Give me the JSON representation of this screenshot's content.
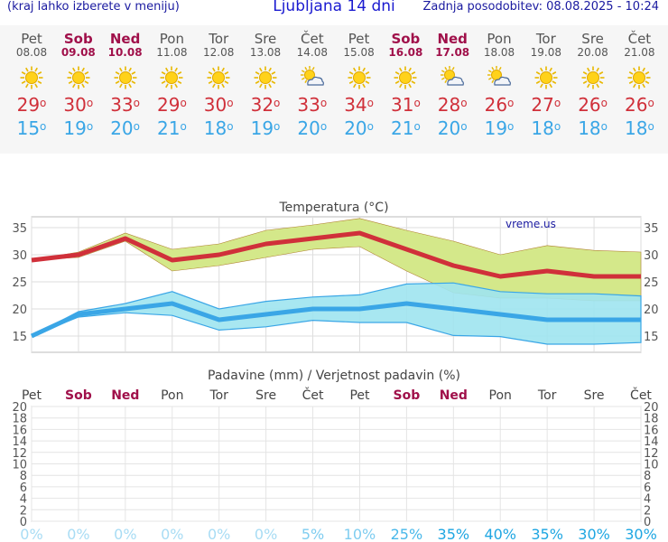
{
  "header": {
    "menu_hint": "(kraj lahko izberete v meniju)",
    "title": "Ljubljana 14 dni",
    "last_update": "Zadnja posodobitev: 08.08.2025 - 10:24"
  },
  "colors": {
    "max": "#d0303a",
    "min": "#3aa6e6",
    "weekend": "#a0104a",
    "band_max": "#d4e88a",
    "band_min": "#9ee4f0"
  },
  "days": [
    {
      "name": "Pet",
      "date": "08.08",
      "weekend": false,
      "icon": "sun-icon",
      "max": "29",
      "min": "15",
      "rain": "0%"
    },
    {
      "name": "Sob",
      "date": "09.08",
      "weekend": true,
      "icon": "sun-icon",
      "max": "30",
      "min": "19",
      "rain": "0%"
    },
    {
      "name": "Ned",
      "date": "10.08",
      "weekend": true,
      "icon": "sun-icon",
      "max": "33",
      "min": "20",
      "rain": "0%"
    },
    {
      "name": "Pon",
      "date": "11.08",
      "weekend": false,
      "icon": "sun-icon",
      "max": "29",
      "min": "21",
      "rain": "0%"
    },
    {
      "name": "Tor",
      "date": "12.08",
      "weekend": false,
      "icon": "sun-icon",
      "max": "30",
      "min": "18",
      "rain": "0%"
    },
    {
      "name": "Sre",
      "date": "13.08",
      "weekend": false,
      "icon": "sun-icon",
      "max": "32",
      "min": "19",
      "rain": "0%"
    },
    {
      "name": "Čet",
      "date": "14.08",
      "weekend": false,
      "icon": "partly-cloudy-icon",
      "max": "33",
      "min": "20",
      "rain": "5%"
    },
    {
      "name": "Pet",
      "date": "15.08",
      "weekend": false,
      "icon": "sun-icon",
      "max": "34",
      "min": "20",
      "rain": "10%"
    },
    {
      "name": "Sob",
      "date": "16.08",
      "weekend": true,
      "icon": "sun-icon",
      "max": "31",
      "min": "21",
      "rain": "25%"
    },
    {
      "name": "Ned",
      "date": "17.08",
      "weekend": true,
      "icon": "partly-cloudy-icon",
      "max": "28",
      "min": "20",
      "rain": "35%"
    },
    {
      "name": "Pon",
      "date": "18.08",
      "weekend": false,
      "icon": "partly-cloudy-icon",
      "max": "26",
      "min": "19",
      "rain": "40%"
    },
    {
      "name": "Tor",
      "date": "19.08",
      "weekend": false,
      "icon": "sun-icon",
      "max": "27",
      "min": "18",
      "rain": "35%"
    },
    {
      "name": "Sre",
      "date": "20.08",
      "weekend": false,
      "icon": "sun-icon",
      "max": "26",
      "min": "18",
      "rain": "30%"
    },
    {
      "name": "Čet",
      "date": "21.08",
      "weekend": false,
      "icon": "sun-icon",
      "max": "26",
      "min": "18",
      "rain": "30%"
    }
  ],
  "chart_data": [
    {
      "type": "line",
      "title": "Temperatura (°C)",
      "watermark": "vreme.us",
      "categories": [
        "08.08",
        "09.08",
        "10.08",
        "11.08",
        "12.08",
        "13.08",
        "14.08",
        "15.08",
        "16.08",
        "17.08",
        "18.08",
        "19.08",
        "20.08",
        "21.08"
      ],
      "ylim": [
        12,
        37
      ],
      "yticks": [
        "15",
        "20",
        "25",
        "30",
        "35"
      ],
      "grid": true,
      "series": [
        {
          "role": "max",
          "values": [
            29,
            30,
            33,
            29,
            30,
            32,
            33,
            34,
            31,
            28,
            26,
            27,
            26,
            26
          ]
        },
        {
          "role": "min",
          "values": [
            15,
            19,
            20,
            21,
            18,
            19,
            20,
            20,
            21,
            20,
            19,
            18,
            18,
            18
          ]
        }
      ],
      "bands": [
        {
          "role": "max-range",
          "upper": [
            29,
            30.5,
            34,
            31,
            32,
            34.5,
            35.5,
            36.7,
            34.5,
            32.5,
            30,
            31.7,
            30.8,
            30.5
          ],
          "lower": [
            29,
            29.5,
            32.5,
            27,
            28,
            29.5,
            31,
            31.5,
            27,
            23,
            22,
            22,
            21.5,
            21.5
          ]
        },
        {
          "role": "min-range",
          "upper": [
            15,
            19.5,
            21,
            23.2,
            20,
            21.4,
            22.2,
            22.6,
            24.6,
            24.8,
            23.2,
            22.8,
            22.8,
            22.4
          ],
          "lower": [
            15,
            18.5,
            19.3,
            18.8,
            16.1,
            16.7,
            17.9,
            17.5,
            17.5,
            15.1,
            14.9,
            13.5,
            13.5,
            13.8
          ]
        }
      ]
    },
    {
      "type": "bar",
      "title": "Padavine (mm) / Verjetnost padavin (%)",
      "categories": [
        "Pet",
        "Sob",
        "Ned",
        "Pon",
        "Tor",
        "Sre",
        "Čet",
        "Pet",
        "Sob",
        "Ned",
        "Pon",
        "Tor",
        "Sre",
        "Čet"
      ],
      "weekend": [
        false,
        true,
        true,
        false,
        false,
        false,
        false,
        false,
        true,
        true,
        false,
        false,
        false,
        false
      ],
      "values": [
        0,
        0,
        0,
        0,
        0,
        0,
        0,
        0,
        0,
        0,
        0,
        0,
        0,
        0
      ],
      "probability": [
        0,
        0,
        0,
        0,
        0,
        0,
        5,
        10,
        25,
        35,
        40,
        35,
        30,
        30
      ],
      "probability_labels": [
        "0%",
        "0%",
        "0%",
        "0%",
        "0%",
        "0%",
        "5%",
        "10%",
        "25%",
        "35%",
        "40%",
        "35%",
        "30%",
        "30%"
      ],
      "ylim": [
        0,
        20
      ],
      "yticks": [
        "0",
        "2",
        "4",
        "6",
        "8",
        "10",
        "12",
        "14",
        "16",
        "18",
        "20"
      ],
      "grid": true
    }
  ]
}
